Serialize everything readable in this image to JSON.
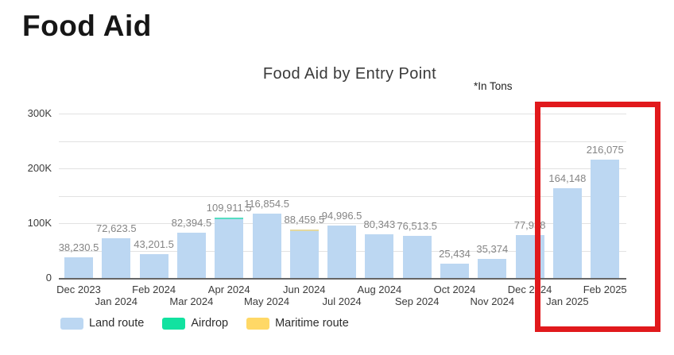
{
  "page": {
    "heading": "Food Aid"
  },
  "chart": {
    "title": "Food Aid by Entry Point",
    "unit_note": "*In Tons",
    "annotation": {
      "type": "highlight-rectangle",
      "color": "#e1191c",
      "covers": [
        "Jan 2025",
        "Feb 2025"
      ]
    }
  },
  "chart_data": {
    "type": "bar",
    "stacked": true,
    "title": "Food Aid by Entry Point",
    "unit": "Tons",
    "categories": [
      "Dec 2023",
      "Jan 2024",
      "Feb 2024",
      "Mar 2024",
      "Apr 2024",
      "May 2024",
      "Jun 2024",
      "Jul 2024",
      "Aug 2024",
      "Sep 2024",
      "Oct 2024",
      "Nov 2024",
      "Dec 2024",
      "Jan 2025",
      "Feb 2025"
    ],
    "series": [
      {
        "name": "Land route",
        "color": "#bcd7f2",
        "values": [
          38230.5,
          72623.5,
          43201.5,
          82394.5,
          106911.5,
          116854.5,
          85459.5,
          94996.5,
          80343,
          76513.5,
          25434,
          35374,
          77938,
          164148,
          216075
        ]
      },
      {
        "name": "Airdrop",
        "color": "#12e2a0",
        "estimated_from_pixels": true,
        "values": [
          0,
          0,
          0,
          0,
          3000,
          0,
          0,
          0,
          0,
          0,
          0,
          0,
          0,
          0,
          0
        ]
      },
      {
        "name": "Maritime route",
        "color": "#ffd866",
        "estimated_from_pixels": true,
        "values": [
          0,
          0,
          0,
          0,
          0,
          0,
          3000,
          0,
          0,
          0,
          0,
          0,
          0,
          0,
          0
        ]
      }
    ],
    "totals_labels": [
      "38,230.5",
      "72,623.5",
      "43,201.5",
      "82,394.5",
      "109,911.5",
      "116,854.5",
      "88,459.5",
      "94,996.5",
      "80,343",
      "76,513.5",
      "25,434",
      "35,374",
      "77,938",
      "164,148",
      "216,075"
    ],
    "ylim": [
      0,
      300000
    ],
    "gridline_step": 50000,
    "y_ticks": [
      {
        "value": 300000,
        "label": "300K"
      },
      {
        "value": 200000,
        "label": "200K"
      },
      {
        "value": 100000,
        "label": "100K"
      },
      {
        "value": 0,
        "label": "0"
      }
    ],
    "grid": true,
    "legend_position": "bottom-left"
  }
}
